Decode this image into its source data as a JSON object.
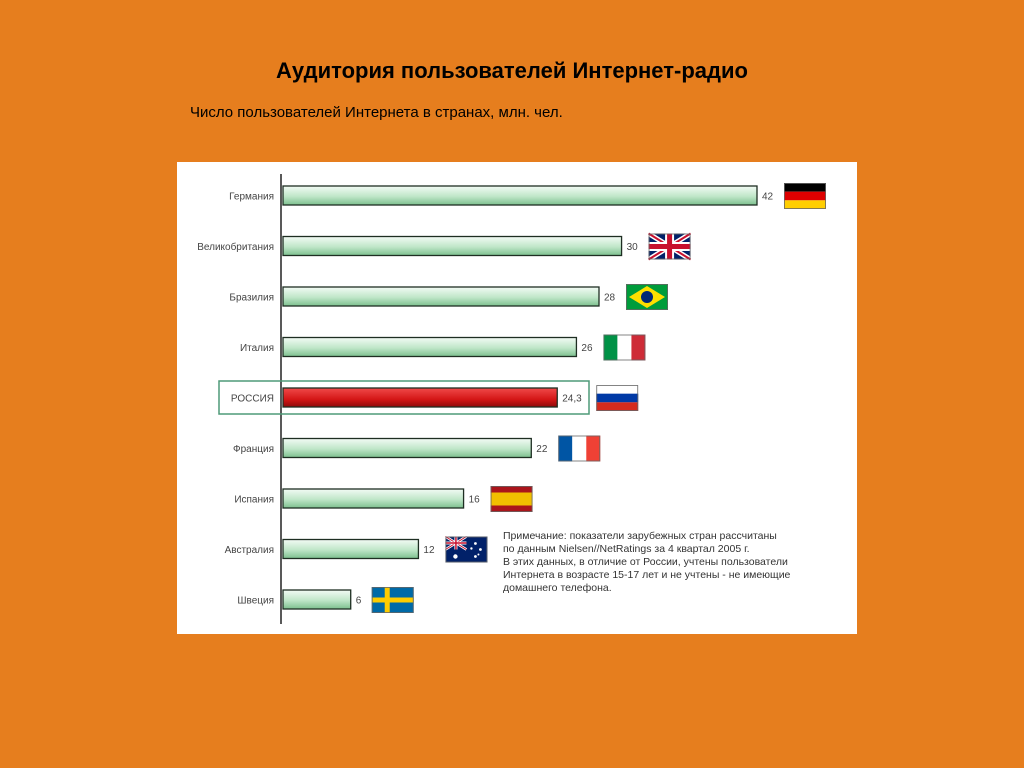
{
  "title": "Аудитория пользователей Интернет-радио",
  "subtitle": "Число пользователей Интернета в странах, млн. чел.",
  "colors": {
    "background": "#E67E1E",
    "bar_normal": "#BFE6C8",
    "bar_highlight": "#D41616",
    "highlight_box": "#4E9A78"
  },
  "chart_data": {
    "type": "bar",
    "orientation": "horizontal",
    "categories": [
      "Германия",
      "Великобритания",
      "Бразилия",
      "Италия",
      "РОССИЯ",
      "Франция",
      "Испания",
      "Австралия",
      "Швеция"
    ],
    "values": [
      42,
      30,
      28,
      26,
      24.3,
      22,
      16,
      12,
      6
    ],
    "value_labels": [
      "42",
      "30",
      "28",
      "26",
      "24,3",
      "22",
      "16",
      "12",
      "6"
    ],
    "highlight": "РОССИЯ",
    "flags": [
      "flag-germany",
      "flag-uk",
      "flag-brazil",
      "flag-italy",
      "flag-russia",
      "flag-france",
      "flag-spain",
      "flag-australia",
      "flag-sweden"
    ],
    "xlim": [
      0,
      42
    ],
    "grid": false,
    "legend": "none"
  },
  "note": {
    "lines": [
      "Примечание: показатели зарубежных стран рассчитаны",
      "по данным Nielsen//NetRatings за 4 квартал 2005 г.",
      "В этих данных, в отличие от России, учтены пользователи",
      "Интернета в возрасте 15-17 лет и не учтены - не имеющие",
      "домашнего телефона."
    ]
  }
}
